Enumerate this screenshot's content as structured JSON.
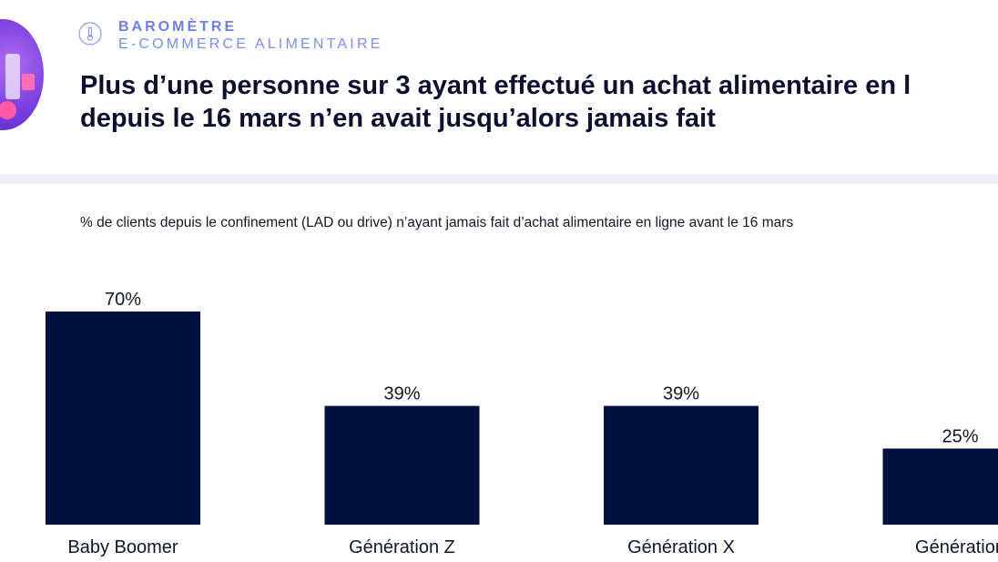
{
  "header": {
    "kicker_line1": "BAROMÈTRE",
    "kicker_line2": "E-COMMERCE ALIMENTAIRE",
    "headline_line1": "Plus d’une personne sur 3 ayant effectué un achat alimentaire en l",
    "headline_line2": "depuis le 16 mars n’en avait jusqu’alors jamais fait"
  },
  "colors": {
    "bar": "#01113f",
    "kicker": "#6b7fe6",
    "divider": "#eef0f8"
  },
  "chart_data": {
    "type": "bar",
    "title": "% de clients depuis le confinement (LAD ou drive) n’ayant jamais fait d’achat alimentaire en ligne avant le 16 mars",
    "categories": [
      "Baby Boomer",
      "Génération Z",
      "Génération X",
      "Génération"
    ],
    "values": [
      70,
      39,
      39,
      25
    ],
    "value_labels": [
      "70%",
      "39%",
      "39%",
      "25%"
    ],
    "xlabel": "",
    "ylabel": "",
    "ylim": [
      0,
      70
    ],
    "grid": false,
    "legend": "none"
  }
}
